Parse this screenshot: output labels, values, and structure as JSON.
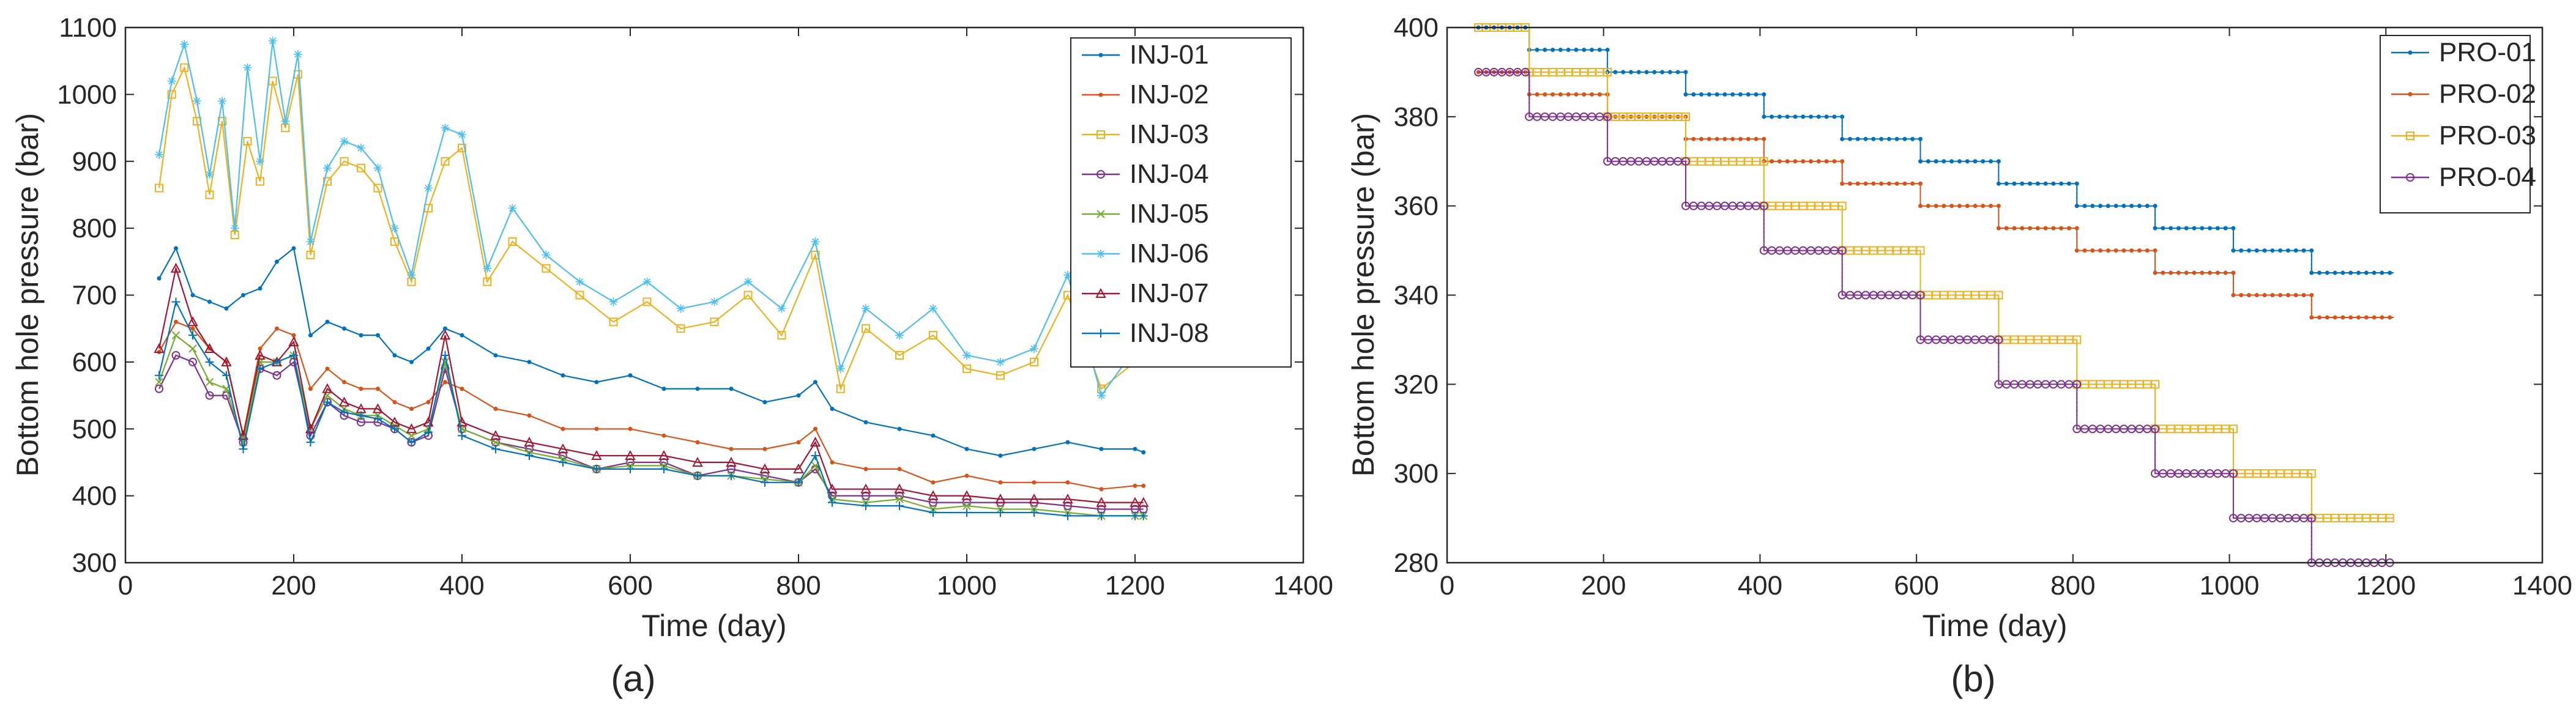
{
  "chart_data": [
    {
      "type": "line",
      "panel_label": "(a)",
      "xlabel": "Time (day)",
      "ylabel": "Bottom hole pressure (bar)",
      "xlim": [
        0,
        1400
      ],
      "ylim": [
        300,
        1100
      ],
      "xticks": [
        0,
        200,
        400,
        600,
        800,
        1000,
        1200,
        1400
      ],
      "yticks": [
        300,
        400,
        500,
        600,
        700,
        800,
        900,
        1000,
        1100
      ],
      "grid": false,
      "legend_position": "top-right",
      "series": [
        {
          "name": "INJ-01",
          "color": "#0072BD",
          "marker": "dot",
          "x": [
            40,
            60,
            80,
            100,
            120,
            140,
            160,
            180,
            200,
            220,
            240,
            260,
            280,
            300,
            320,
            340,
            360,
            380,
            400,
            440,
            480,
            520,
            560,
            600,
            640,
            680,
            720,
            760,
            800,
            820,
            840,
            880,
            920,
            960,
            1000,
            1040,
            1080,
            1120,
            1160,
            1200,
            1210
          ],
          "y": [
            725,
            770,
            700,
            690,
            680,
            700,
            710,
            750,
            770,
            640,
            660,
            650,
            640,
            640,
            610,
            600,
            620,
            650,
            640,
            610,
            600,
            580,
            570,
            580,
            560,
            560,
            560,
            540,
            550,
            570,
            530,
            510,
            500,
            490,
            470,
            460,
            470,
            480,
            470,
            470,
            465
          ]
        },
        {
          "name": "INJ-02",
          "color": "#D95319",
          "marker": "dot",
          "x": [
            40,
            60,
            80,
            100,
            120,
            140,
            160,
            180,
            200,
            220,
            240,
            260,
            280,
            300,
            320,
            340,
            360,
            380,
            400,
            440,
            480,
            520,
            560,
            600,
            640,
            680,
            720,
            760,
            800,
            820,
            840,
            880,
            920,
            960,
            1000,
            1040,
            1080,
            1120,
            1160,
            1200,
            1210
          ],
          "y": [
            615,
            660,
            650,
            620,
            600,
            490,
            620,
            650,
            640,
            560,
            590,
            570,
            560,
            560,
            540,
            530,
            540,
            570,
            560,
            530,
            520,
            500,
            500,
            500,
            490,
            480,
            470,
            470,
            480,
            500,
            450,
            440,
            440,
            420,
            430,
            420,
            420,
            420,
            410,
            415,
            415
          ]
        },
        {
          "name": "INJ-03",
          "color": "#EDB120",
          "marker": "square",
          "x": [
            40,
            55,
            70,
            85,
            100,
            115,
            130,
            145,
            160,
            175,
            190,
            205,
            220,
            240,
            260,
            280,
            300,
            320,
            340,
            360,
            380,
            400,
            430,
            460,
            500,
            540,
            580,
            620,
            660,
            700,
            740,
            780,
            820,
            850,
            880,
            920,
            960,
            1000,
            1040,
            1080,
            1120,
            1160,
            1200,
            1210
          ],
          "y": [
            860,
            1000,
            1040,
            960,
            850,
            960,
            790,
            930,
            870,
            1020,
            950,
            1030,
            760,
            870,
            900,
            890,
            860,
            780,
            720,
            830,
            900,
            920,
            720,
            780,
            740,
            700,
            660,
            690,
            650,
            660,
            700,
            640,
            760,
            560,
            650,
            610,
            640,
            590,
            580,
            600,
            700,
            560,
            600,
            650
          ]
        },
        {
          "name": "INJ-04",
          "color": "#7E2F8E",
          "marker": "circle",
          "x": [
            40,
            60,
            80,
            100,
            120,
            140,
            160,
            180,
            200,
            220,
            240,
            260,
            280,
            300,
            320,
            340,
            360,
            380,
            400,
            440,
            480,
            520,
            560,
            600,
            640,
            680,
            720,
            760,
            800,
            820,
            840,
            880,
            920,
            960,
            1000,
            1040,
            1080,
            1120,
            1160,
            1200,
            1210
          ],
          "y": [
            560,
            610,
            600,
            550,
            550,
            480,
            590,
            580,
            600,
            490,
            540,
            520,
            510,
            510,
            500,
            480,
            490,
            590,
            500,
            480,
            470,
            460,
            440,
            450,
            450,
            430,
            440,
            430,
            420,
            440,
            400,
            400,
            400,
            390,
            390,
            390,
            390,
            385,
            380,
            380,
            380
          ]
        },
        {
          "name": "INJ-05",
          "color": "#77AC30",
          "marker": "cross",
          "x": [
            40,
            60,
            80,
            100,
            120,
            140,
            160,
            180,
            200,
            220,
            240,
            260,
            280,
            300,
            320,
            340,
            360,
            380,
            400,
            440,
            480,
            520,
            560,
            600,
            640,
            680,
            720,
            760,
            800,
            820,
            840,
            880,
            920,
            960,
            1000,
            1040,
            1080,
            1120,
            1160,
            1200,
            1210
          ],
          "y": [
            570,
            640,
            620,
            570,
            560,
            480,
            600,
            600,
            610,
            500,
            550,
            530,
            520,
            520,
            505,
            490,
            500,
            600,
            500,
            480,
            465,
            455,
            440,
            445,
            445,
            430,
            430,
            425,
            420,
            445,
            395,
            390,
            395,
            380,
            385,
            380,
            380,
            375,
            370,
            370,
            370
          ]
        },
        {
          "name": "INJ-06",
          "color": "#4DBEEE",
          "marker": "star",
          "x": [
            40,
            55,
            70,
            85,
            100,
            115,
            130,
            145,
            160,
            175,
            190,
            205,
            220,
            240,
            260,
            280,
            300,
            320,
            340,
            360,
            380,
            400,
            430,
            460,
            500,
            540,
            580,
            620,
            660,
            700,
            740,
            780,
            820,
            850,
            880,
            920,
            960,
            1000,
            1040,
            1080,
            1120,
            1160,
            1200,
            1210
          ],
          "y": [
            910,
            1020,
            1075,
            990,
            880,
            990,
            800,
            1040,
            900,
            1080,
            960,
            1060,
            780,
            890,
            930,
            920,
            890,
            800,
            730,
            860,
            950,
            940,
            740,
            830,
            760,
            720,
            690,
            720,
            680,
            690,
            720,
            680,
            780,
            590,
            680,
            640,
            680,
            610,
            600,
            620,
            730,
            550,
            620,
            660
          ]
        },
        {
          "name": "INJ-07",
          "color": "#A2142F",
          "marker": "triangle",
          "x": [
            40,
            60,
            80,
            100,
            120,
            140,
            160,
            180,
            200,
            220,
            240,
            260,
            280,
            300,
            320,
            340,
            360,
            380,
            400,
            440,
            480,
            520,
            560,
            600,
            640,
            680,
            720,
            760,
            800,
            820,
            840,
            880,
            920,
            960,
            1000,
            1040,
            1080,
            1120,
            1160,
            1200,
            1210
          ],
          "y": [
            620,
            740,
            660,
            620,
            600,
            490,
            610,
            600,
            630,
            500,
            560,
            540,
            530,
            530,
            510,
            500,
            510,
            640,
            510,
            490,
            480,
            470,
            460,
            460,
            460,
            450,
            450,
            440,
            440,
            480,
            410,
            410,
            410,
            400,
            400,
            395,
            395,
            395,
            390,
            390,
            390
          ]
        },
        {
          "name": "INJ-08",
          "color": "#0072BD",
          "marker": "plus",
          "x": [
            40,
            60,
            80,
            100,
            120,
            140,
            160,
            180,
            200,
            220,
            240,
            260,
            280,
            300,
            320,
            340,
            360,
            380,
            400,
            440,
            480,
            520,
            560,
            600,
            640,
            680,
            720,
            760,
            800,
            820,
            840,
            880,
            920,
            960,
            1000,
            1040,
            1080,
            1120,
            1160,
            1200,
            1210
          ],
          "y": [
            580,
            690,
            640,
            600,
            580,
            470,
            590,
            600,
            610,
            480,
            540,
            525,
            520,
            515,
            500,
            480,
            495,
            610,
            490,
            470,
            460,
            450,
            440,
            440,
            440,
            430,
            430,
            420,
            420,
            460,
            390,
            385,
            385,
            375,
            375,
            375,
            375,
            370,
            370,
            370,
            370
          ]
        }
      ]
    },
    {
      "type": "line",
      "panel_label": "(b)",
      "xlabel": "Time (day)",
      "ylabel": "Bottom hole pressure (bar)",
      "xlim": [
        0,
        1400
      ],
      "ylim": [
        280,
        400
      ],
      "xticks": [
        0,
        200,
        400,
        600,
        800,
        1000,
        1200,
        1400
      ],
      "yticks": [
        280,
        300,
        320,
        340,
        360,
        380,
        400
      ],
      "grid": false,
      "legend_position": "top-right",
      "step_x": [
        40,
        105,
        205,
        305,
        405,
        505,
        605,
        705,
        805,
        905,
        1005,
        1105,
        1210
      ],
      "series": [
        {
          "name": "PRO-01",
          "color": "#0072BD",
          "marker": "dot",
          "levels": [
            400,
            395,
            390,
            385,
            380,
            375,
            370,
            365,
            360,
            355,
            350,
            345
          ]
        },
        {
          "name": "PRO-02",
          "color": "#D95319",
          "marker": "dot",
          "levels": [
            390,
            385,
            380,
            375,
            370,
            365,
            360,
            355,
            350,
            345,
            340,
            335
          ]
        },
        {
          "name": "PRO-03",
          "color": "#EDB120",
          "marker": "square",
          "levels": [
            400,
            390,
            380,
            370,
            360,
            350,
            340,
            330,
            320,
            310,
            300,
            290
          ]
        },
        {
          "name": "PRO-04",
          "color": "#7E2F8E",
          "marker": "circle",
          "levels": [
            390,
            380,
            370,
            360,
            350,
            340,
            330,
            320,
            310,
            300,
            290,
            280
          ]
        }
      ]
    }
  ]
}
